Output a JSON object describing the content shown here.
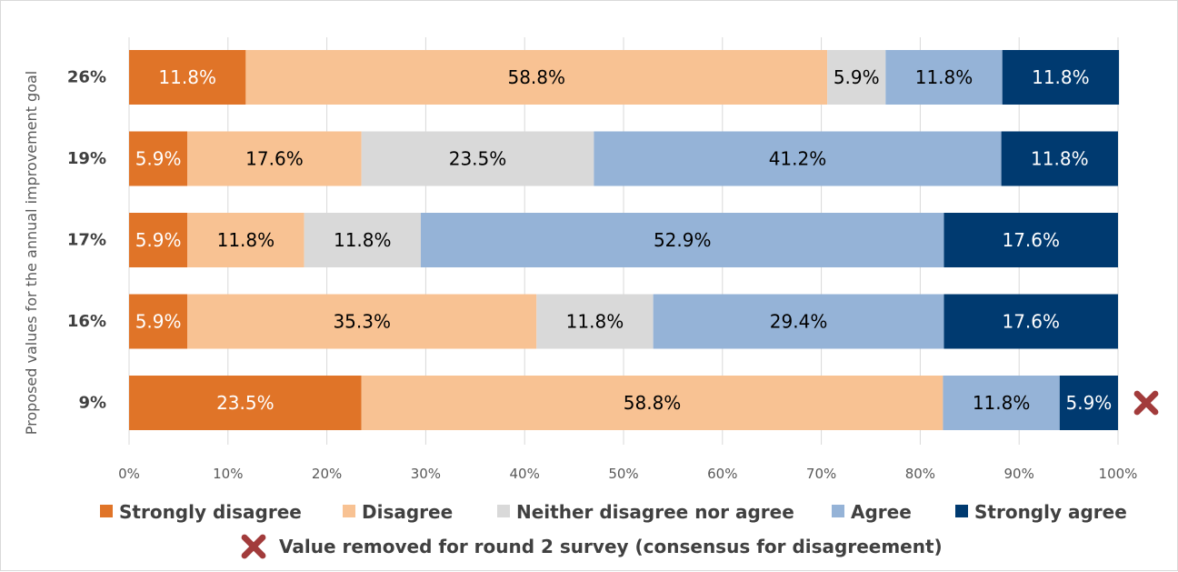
{
  "chart_data": {
    "type": "bar",
    "orientation": "horizontal",
    "stacked": "percent",
    "title": "",
    "ylabel": "Proposed values for the annual improvement goal",
    "xlabel": "",
    "xlim": [
      0,
      100
    ],
    "x_ticks": [
      "0%",
      "10%",
      "20%",
      "30%",
      "40%",
      "50%",
      "60%",
      "70%",
      "80%",
      "90%",
      "100%"
    ],
    "categories": [
      "26%",
      "19%",
      "17%",
      "16%",
      "9%"
    ],
    "series": [
      {
        "name": "Strongly disagree",
        "color": "#E07428",
        "label_color": "#ffffff",
        "values": [
          11.8,
          5.9,
          5.9,
          5.9,
          23.5
        ],
        "labels": [
          "11.8%",
          "5.9%",
          "5.9%",
          "5.9%",
          "23.5%"
        ]
      },
      {
        "name": "Disagree",
        "color": "#F8C293",
        "label_color": "#000000",
        "values": [
          58.8,
          17.6,
          11.8,
          35.3,
          58.8
        ],
        "labels": [
          "58.8%",
          "17.6%",
          "11.8%",
          "35.3%",
          "58.8%"
        ]
      },
      {
        "name": "Neither disagree nor agree",
        "color": "#D9D9D9",
        "label_color": "#000000",
        "values": [
          5.9,
          23.5,
          11.8,
          11.8,
          0
        ],
        "labels": [
          "5.9%",
          "23.5%",
          "11.8%",
          "11.8%",
          ""
        ]
      },
      {
        "name": "Agree",
        "color": "#95B3D7",
        "label_color": "#000000",
        "values": [
          11.8,
          41.2,
          52.9,
          29.4,
          11.8
        ],
        "labels": [
          "11.8%",
          "41.2%",
          "52.9%",
          "29.4%",
          "11.8%"
        ]
      },
      {
        "name": "Strongly agree",
        "color": "#003A70",
        "label_color": "#ffffff",
        "values": [
          11.8,
          11.8,
          17.6,
          17.6,
          5.9
        ],
        "labels": [
          "11.8%",
          "11.8%",
          "17.6%",
          "17.6%",
          "5.9%"
        ]
      }
    ],
    "removed_marker": {
      "category": "9%",
      "icon": "cross-icon",
      "color": "#A23B3B"
    },
    "legend": {
      "placement": "bottom",
      "note": "Value removed for round 2 survey (consensus for disagreement)"
    },
    "grid": true
  }
}
